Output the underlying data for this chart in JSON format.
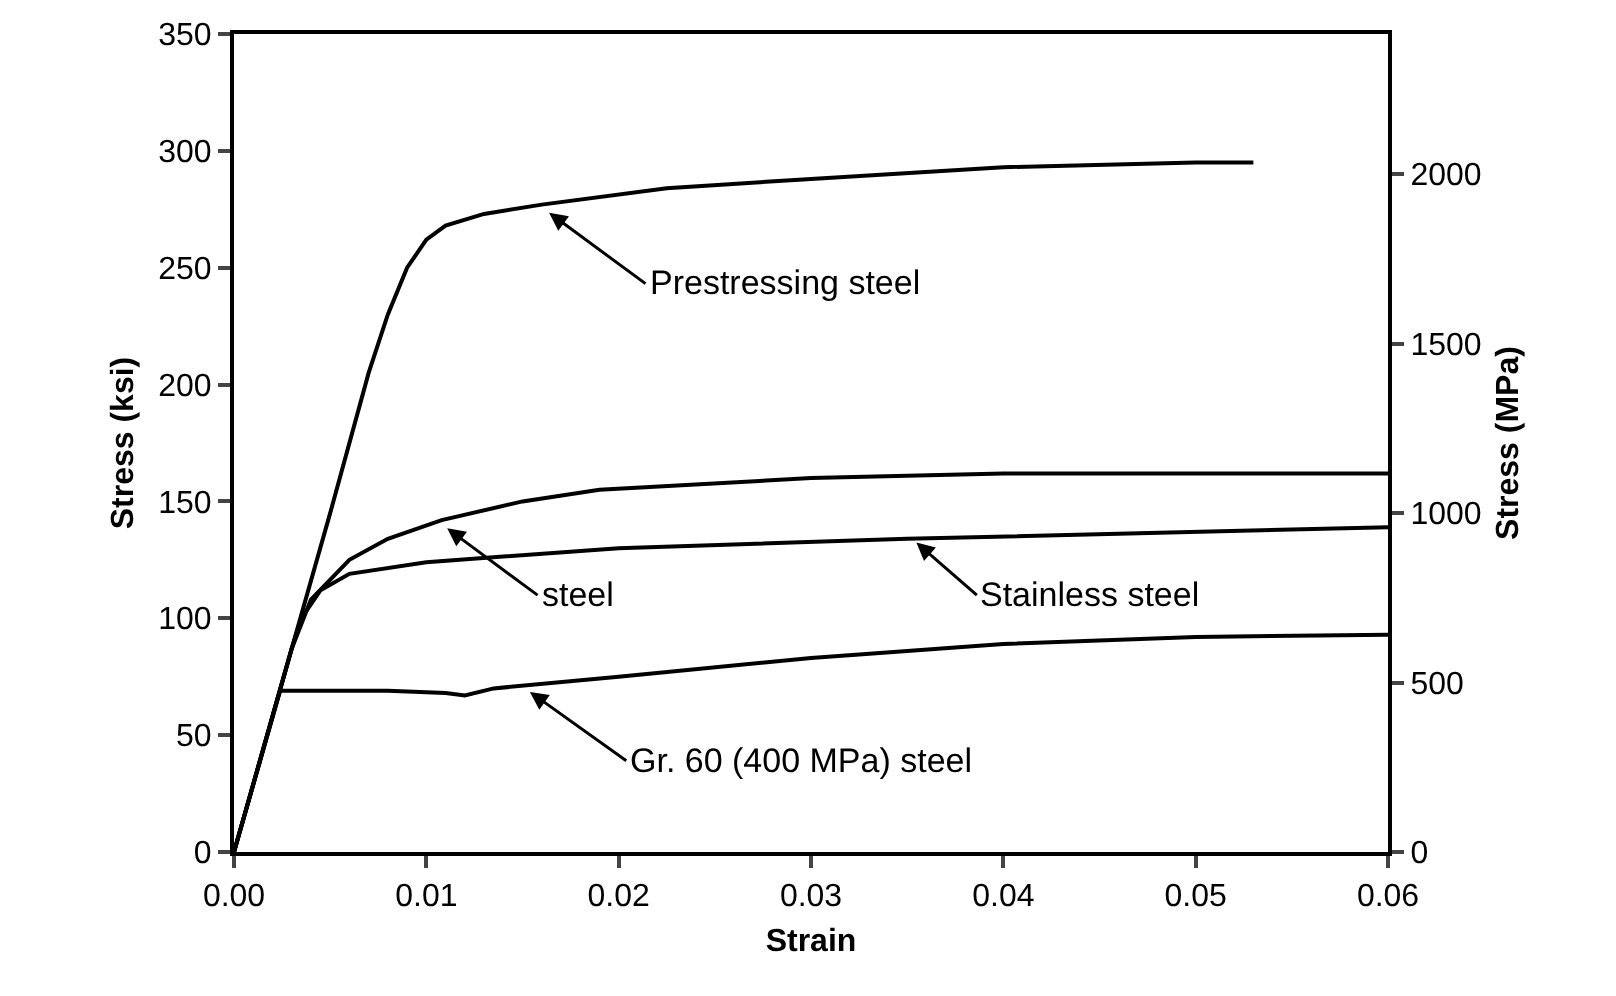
{
  "chart_data": {
    "type": "line",
    "xlabel": "Strain",
    "ylabel": "Stress (ksi)",
    "y2label": "Stress (MPa)",
    "xlim": [
      0,
      0.06
    ],
    "xticks": [
      {
        "value": 0,
        "label": "0.00"
      },
      0.01,
      0.02,
      0.03,
      0.04,
      0.05,
      0.06
    ],
    "ylim": [
      0,
      350
    ],
    "yticks": [
      0,
      50,
      100,
      150,
      200,
      250,
      300,
      350
    ],
    "y2lim": [
      0,
      2413
    ],
    "y2ticks": [
      0,
      500,
      1000,
      1500,
      2000
    ],
    "line_style": "solid",
    "series": [
      {
        "color": "#000000",
        "x": [
          0,
          0.005,
          0.007,
          0.008,
          0.009,
          0.01,
          0.011,
          0.013,
          0.016,
          0.0225,
          0.03,
          0.04,
          0.05,
          0.053
        ],
        "values": [
          0,
          145,
          205,
          230,
          250,
          262,
          268,
          273,
          277,
          284,
          288,
          293,
          295,
          295
        ]
      },
      {
        "color": "#000000",
        "x": [
          0,
          0.003,
          0.004,
          0.006,
          0.008,
          0.0108,
          0.015,
          0.019,
          0.03,
          0.04,
          0.06
        ],
        "values": [
          0,
          87,
          108,
          125,
          134,
          142,
          150,
          155,
          160,
          162,
          162
        ]
      },
      {
        "color": "#000000",
        "x": [
          0,
          0.003,
          0.0035,
          0.0045,
          0.006,
          0.01,
          0.02,
          0.035,
          0.06
        ],
        "values": [
          0,
          87,
          100,
          112,
          119,
          124,
          130,
          134,
          139
        ]
      },
      {
        "color": "#000000",
        "x": [
          0,
          0.0024,
          0.008,
          0.011,
          0.012,
          0.0135,
          0.02,
          0.03,
          0.04,
          0.05,
          0.06
        ],
        "values": [
          0,
          69,
          69,
          68,
          67,
          70,
          75,
          83,
          89,
          92,
          93
        ]
      }
    ],
    "annotations": [
      {
        "text": "Prestressing steel",
        "x": 0.0163,
        "y": 274
      },
      {
        "text": "steel",
        "x": 0.011,
        "y": 139
      },
      {
        "text": "Stainless steel",
        "x": 0.0354,
        "y": 133
      },
      {
        "text": "Gr. 60 (400 MPa) steel",
        "x": 0.0153,
        "y": 69
      }
    ]
  }
}
